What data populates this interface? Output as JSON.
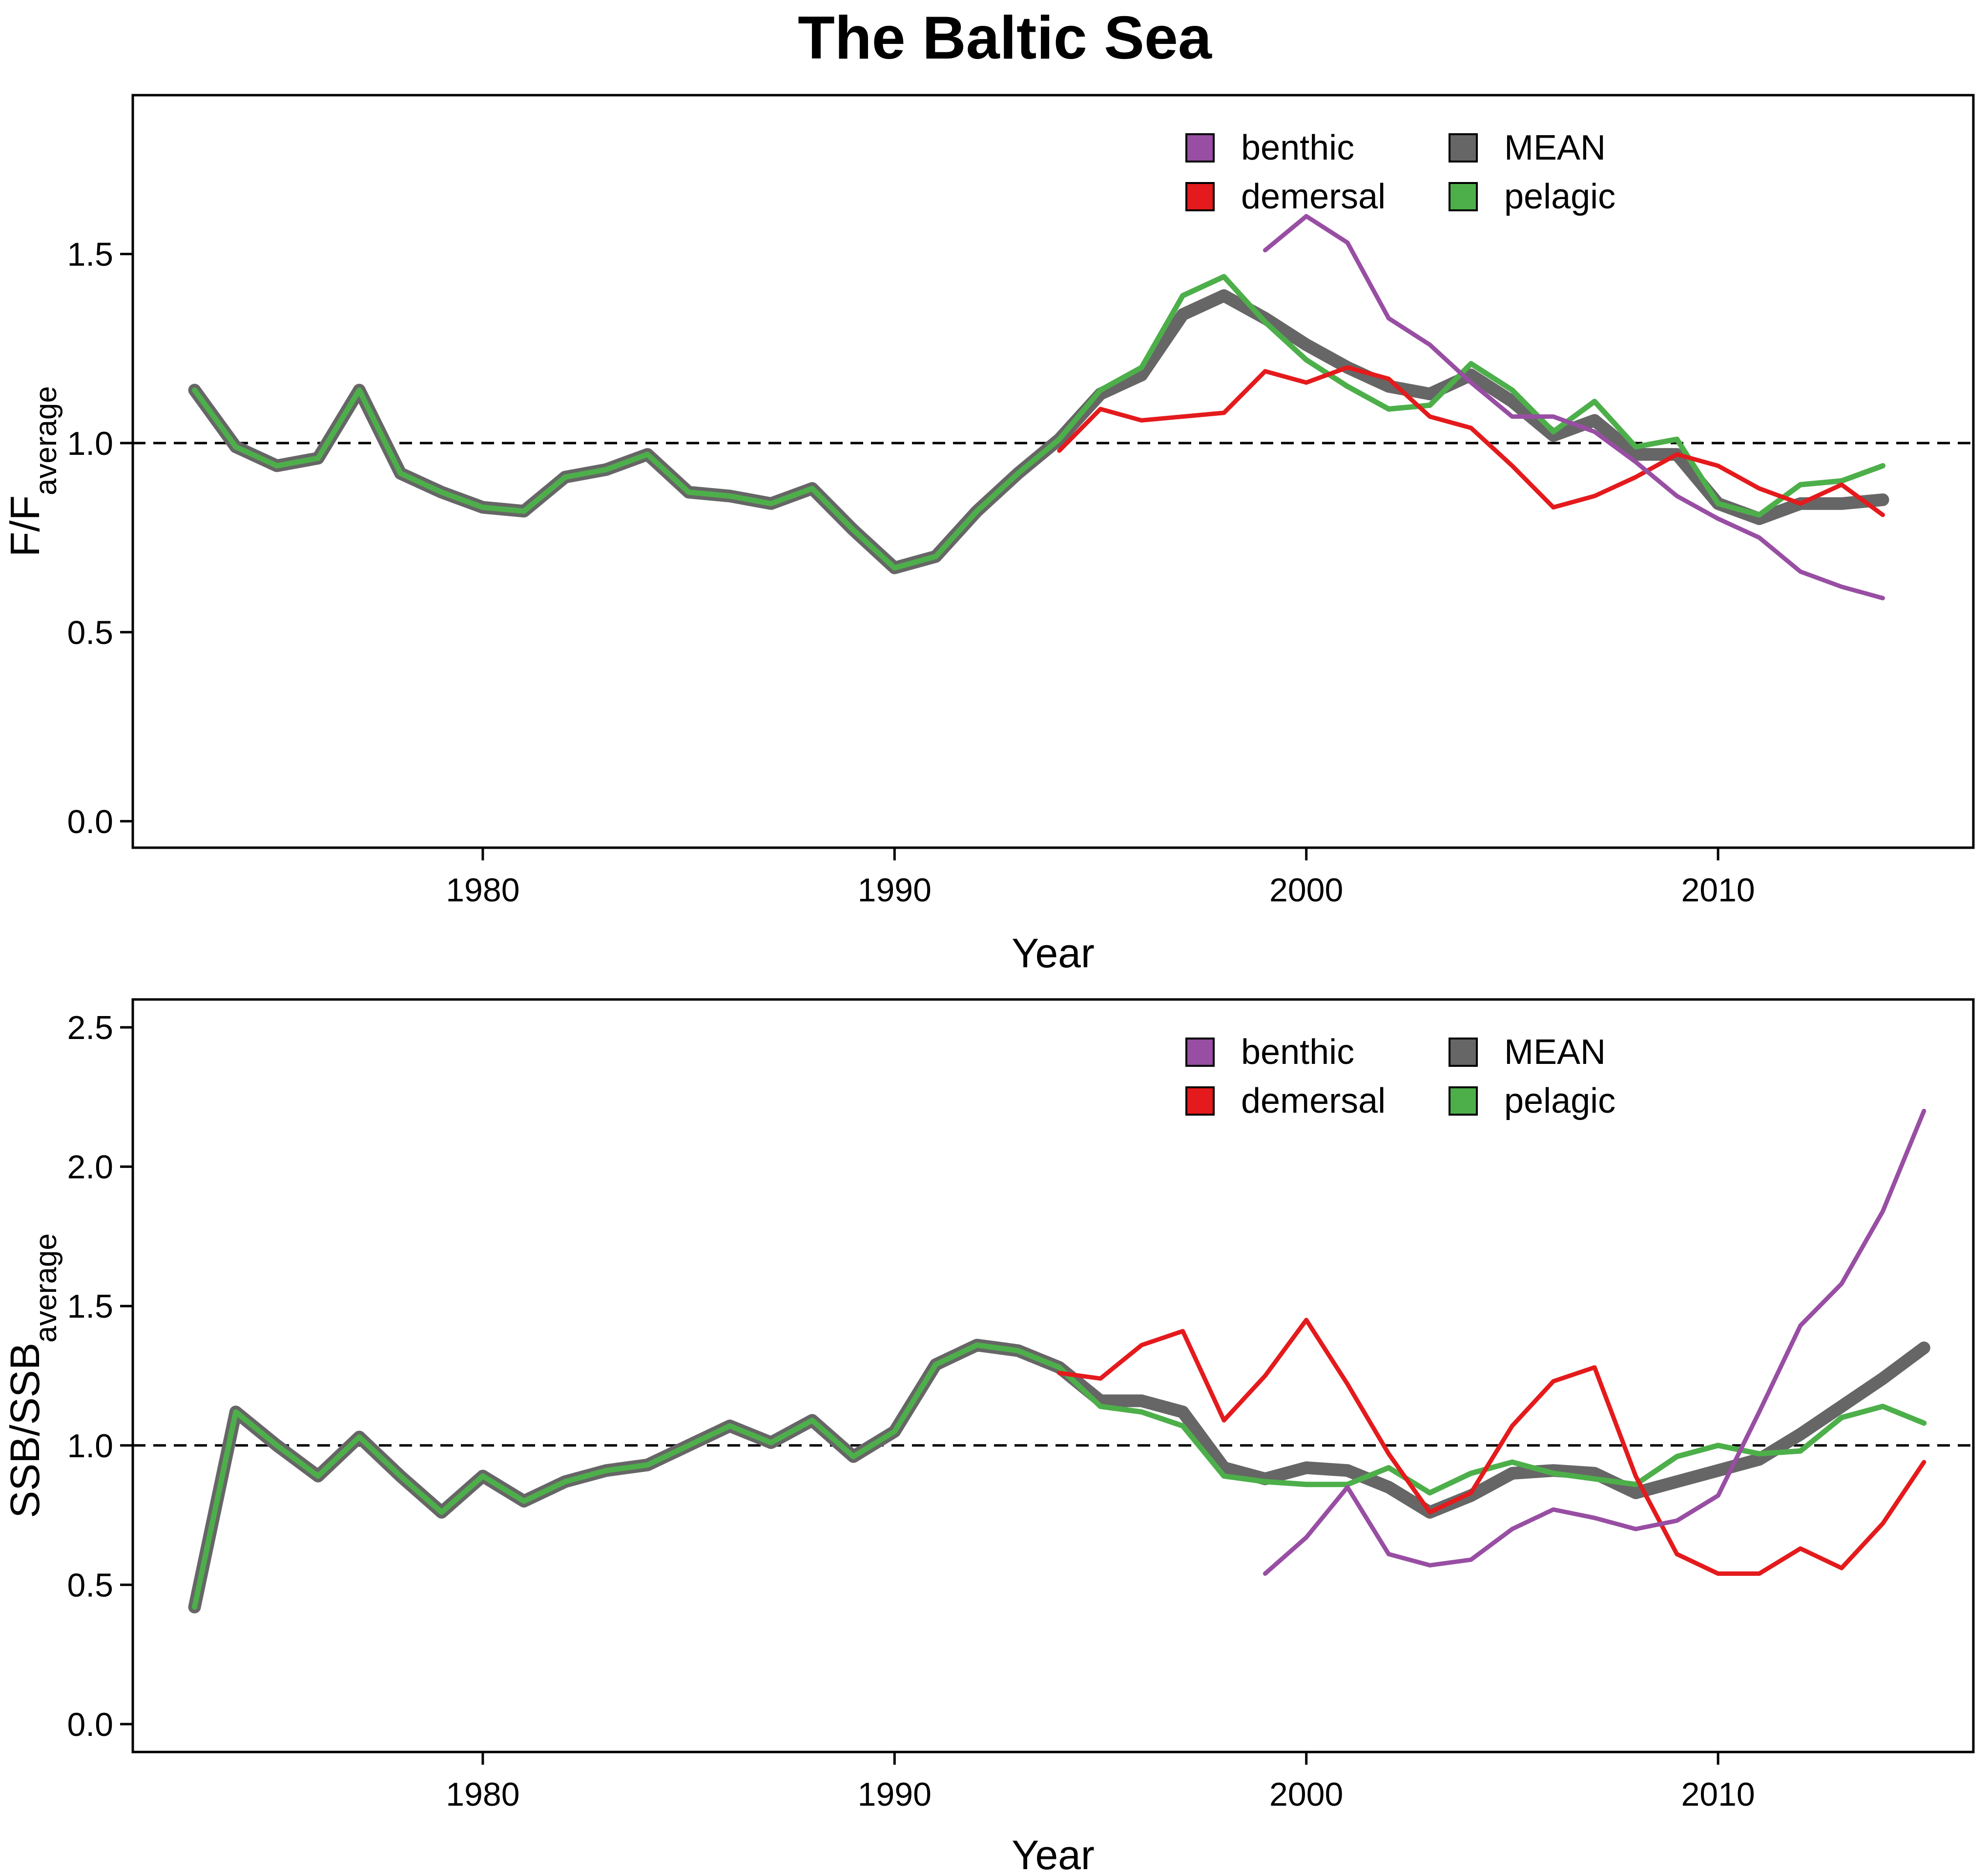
{
  "title": "The Baltic Sea",
  "colors": {
    "benthic": "#984EA3",
    "demersal": "#E41A1C",
    "mean": "#666666",
    "pelagic": "#4DAF4A"
  },
  "chart_data": [
    {
      "type": "line",
      "id": "f-panel",
      "xlabel": "Year",
      "ylabel_main": "F/F",
      "ylabel_sub": "average",
      "xlim": [
        1971.5,
        2016.2
      ],
      "ylim": [
        -0.07,
        1.92
      ],
      "xticks": [
        1980,
        1990,
        2000,
        2010
      ],
      "yticks": [
        0.0,
        0.5,
        1.0,
        1.5
      ],
      "ytick_labels": [
        "0.0",
        "0.5",
        "1.0",
        "1.5"
      ],
      "reference_line": 1.0,
      "legend": {
        "placement": "top-right",
        "entries": [
          "benthic",
          "demersal",
          "MEAN",
          "pelagic"
        ]
      },
      "series": [
        {
          "name": "MEAN",
          "color_key": "mean",
          "x": [
            1973,
            1974,
            1975,
            1976,
            1977,
            1978,
            1979,
            1980,
            1981,
            1982,
            1983,
            1984,
            1985,
            1986,
            1987,
            1988,
            1989,
            1990,
            1991,
            1992,
            1993,
            1994,
            1995,
            1996,
            1997,
            1998,
            1999,
            2000,
            2001,
            2002,
            2003,
            2004,
            2005,
            2006,
            2007,
            2008,
            2009,
            2010,
            2011,
            2012,
            2013,
            2014
          ],
          "y": [
            1.14,
            0.99,
            0.94,
            0.96,
            1.14,
            0.92,
            0.87,
            0.83,
            0.82,
            0.91,
            0.93,
            0.97,
            0.87,
            0.86,
            0.84,
            0.88,
            0.77,
            0.67,
            0.7,
            0.82,
            0.92,
            1.01,
            1.13,
            1.18,
            1.34,
            1.39,
            1.33,
            1.26,
            1.2,
            1.15,
            1.13,
            1.18,
            1.11,
            1.02,
            1.06,
            0.97,
            0.97,
            0.84,
            0.8,
            0.84,
            0.84,
            0.85
          ]
        },
        {
          "name": "pelagic",
          "color_key": "pelagic",
          "x": [
            1973,
            1974,
            1975,
            1976,
            1977,
            1978,
            1979,
            1980,
            1981,
            1982,
            1983,
            1984,
            1985,
            1986,
            1987,
            1988,
            1989,
            1990,
            1991,
            1992,
            1993,
            1994,
            1995,
            1996,
            1997,
            1998,
            1999,
            2000,
            2001,
            2002,
            2003,
            2004,
            2005,
            2006,
            2007,
            2008,
            2009,
            2010,
            2011,
            2012,
            2013,
            2014
          ],
          "y": [
            1.14,
            0.99,
            0.94,
            0.96,
            1.14,
            0.92,
            0.87,
            0.83,
            0.82,
            0.91,
            0.93,
            0.97,
            0.87,
            0.86,
            0.84,
            0.88,
            0.77,
            0.67,
            0.7,
            0.82,
            0.92,
            1.01,
            1.14,
            1.2,
            1.39,
            1.44,
            1.32,
            1.22,
            1.15,
            1.09,
            1.1,
            1.21,
            1.14,
            1.03,
            1.11,
            0.99,
            1.01,
            0.84,
            0.81,
            0.89,
            0.9,
            0.94
          ]
        },
        {
          "name": "demersal",
          "color_key": "demersal",
          "x": [
            1994,
            1995,
            1996,
            1997,
            1998,
            1999,
            2000,
            2001,
            2002,
            2003,
            2004,
            2005,
            2006,
            2007,
            2008,
            2009,
            2010,
            2011,
            2012,
            2013,
            2014
          ],
          "y": [
            0.98,
            1.09,
            1.06,
            1.07,
            1.08,
            1.19,
            1.16,
            1.2,
            1.17,
            1.07,
            1.04,
            0.94,
            0.83,
            0.86,
            0.91,
            0.97,
            0.94,
            0.88,
            0.84,
            0.89,
            0.81
          ]
        },
        {
          "name": "benthic",
          "color_key": "benthic",
          "x": [
            1999,
            2000,
            2001,
            2002,
            2003,
            2004,
            2005,
            2006,
            2007,
            2008,
            2009,
            2010,
            2011,
            2012,
            2013,
            2014
          ],
          "y": [
            1.51,
            1.6,
            1.53,
            1.33,
            1.26,
            1.16,
            1.07,
            1.07,
            1.03,
            0.95,
            0.86,
            0.8,
            0.75,
            0.66,
            0.62,
            0.59
          ]
        }
      ]
    },
    {
      "type": "line",
      "id": "ssb-panel",
      "xlabel": "Year",
      "ylabel_main": "SSB/SSB",
      "ylabel_sub": "average",
      "xlim": [
        1971.5,
        2016.2
      ],
      "ylim": [
        -0.1,
        2.6
      ],
      "xticks": [
        1980,
        1990,
        2000,
        2010
      ],
      "yticks": [
        0.0,
        0.5,
        1.0,
        1.5,
        2.0,
        2.5
      ],
      "ytick_labels": [
        "0.0",
        "0.5",
        "1.0",
        "1.5",
        "2.0",
        "2.5"
      ],
      "reference_line": 1.0,
      "legend": {
        "placement": "top-right",
        "entries": [
          "benthic",
          "demersal",
          "MEAN",
          "pelagic"
        ]
      },
      "series": [
        {
          "name": "MEAN",
          "color_key": "mean",
          "x": [
            1973,
            1974,
            1975,
            1976,
            1977,
            1978,
            1979,
            1980,
            1981,
            1982,
            1983,
            1984,
            1985,
            1986,
            1987,
            1988,
            1989,
            1990,
            1991,
            1992,
            1993,
            1994,
            1995,
            1996,
            1997,
            1998,
            1999,
            2000,
            2001,
            2002,
            2003,
            2004,
            2005,
            2006,
            2007,
            2008,
            2009,
            2010,
            2011,
            2012,
            2013,
            2014,
            2015
          ],
          "y": [
            0.42,
            1.12,
            1.0,
            0.89,
            1.03,
            0.89,
            0.76,
            0.89,
            0.8,
            0.87,
            0.91,
            0.93,
            1.0,
            1.07,
            1.01,
            1.09,
            0.96,
            1.05,
            1.29,
            1.36,
            1.34,
            1.28,
            1.16,
            1.16,
            1.12,
            0.92,
            0.88,
            0.92,
            0.91,
            0.85,
            0.76,
            0.82,
            0.9,
            0.91,
            0.9,
            0.83,
            0.87,
            0.91,
            0.95,
            1.04,
            1.14,
            1.24,
            1.35
          ]
        },
        {
          "name": "pelagic",
          "color_key": "pelagic",
          "x": [
            1973,
            1974,
            1975,
            1976,
            1977,
            1978,
            1979,
            1980,
            1981,
            1982,
            1983,
            1984,
            1985,
            1986,
            1987,
            1988,
            1989,
            1990,
            1991,
            1992,
            1993,
            1994,
            1995,
            1996,
            1997,
            1998,
            1999,
            2000,
            2001,
            2002,
            2003,
            2004,
            2005,
            2006,
            2007,
            2008,
            2009,
            2010,
            2011,
            2012,
            2013,
            2014,
            2015
          ],
          "y": [
            0.42,
            1.12,
            1.0,
            0.89,
            1.03,
            0.89,
            0.76,
            0.89,
            0.8,
            0.87,
            0.91,
            0.93,
            1.0,
            1.07,
            1.01,
            1.09,
            0.96,
            1.05,
            1.29,
            1.36,
            1.34,
            1.28,
            1.14,
            1.12,
            1.07,
            0.89,
            0.87,
            0.86,
            0.86,
            0.92,
            0.83,
            0.9,
            0.94,
            0.9,
            0.88,
            0.86,
            0.96,
            1.0,
            0.97,
            0.98,
            1.1,
            1.14,
            1.08
          ]
        },
        {
          "name": "demersal",
          "color_key": "demersal",
          "x": [
            1994,
            1995,
            1996,
            1997,
            1998,
            1999,
            2000,
            2001,
            2002,
            2003,
            2004,
            2005,
            2006,
            2007,
            2008,
            2009,
            2010,
            2011,
            2012,
            2013,
            2014,
            2015
          ],
          "y": [
            1.26,
            1.24,
            1.36,
            1.41,
            1.09,
            1.25,
            1.45,
            1.22,
            0.97,
            0.76,
            0.83,
            1.07,
            1.23,
            1.28,
            0.89,
            0.61,
            0.54,
            0.54,
            0.63,
            0.56,
            0.72,
            0.94
          ]
        },
        {
          "name": "benthic",
          "color_key": "benthic",
          "x": [
            1999,
            2000,
            2001,
            2002,
            2003,
            2004,
            2005,
            2006,
            2007,
            2008,
            2009,
            2010,
            2011,
            2012,
            2013,
            2014,
            2015
          ],
          "y": [
            0.54,
            0.67,
            0.85,
            0.61,
            0.57,
            0.59,
            0.7,
            0.77,
            0.74,
            0.7,
            0.73,
            0.82,
            1.12,
            1.43,
            1.58,
            1.84,
            2.2
          ]
        }
      ]
    }
  ]
}
